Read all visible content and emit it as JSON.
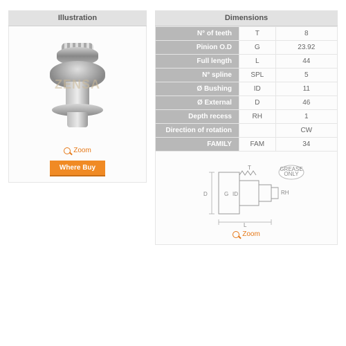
{
  "headers": {
    "illustration": "Illustration",
    "dimensions": "Dimensions"
  },
  "zoom_label": "Zoom",
  "where_buy": "Where Buy",
  "watermark": "ZENSA",
  "accent_color": "#e67817",
  "dim_rows": [
    {
      "label": "N° of teeth",
      "sym": "T",
      "val": "8"
    },
    {
      "label": "Pinion O.D",
      "sym": "G",
      "val": "23.92"
    },
    {
      "label": "Full length",
      "sym": "L",
      "val": "44"
    },
    {
      "label": "N° spline",
      "sym": "SPL",
      "val": "5"
    },
    {
      "label": "Ø Bushing",
      "sym": "ID",
      "val": "11"
    },
    {
      "label": "Ø External",
      "sym": "D",
      "val": "46"
    },
    {
      "label": "Depth recess",
      "sym": "RH",
      "val": "1"
    },
    {
      "label": "Direction of rotation",
      "sym": "",
      "val": "CW"
    },
    {
      "label": "FAMILY",
      "sym": "FAM",
      "val": "34"
    }
  ],
  "diagram": {
    "labels": {
      "D": "D",
      "G": "G",
      "ID": "ID",
      "T": "T",
      "L": "L",
      "RH": "RH"
    },
    "badge": "GREASE ONLY"
  }
}
